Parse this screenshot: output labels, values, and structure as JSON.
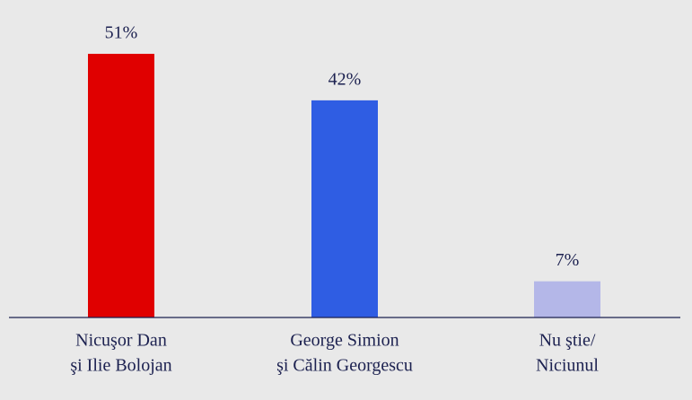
{
  "chart_data": {
    "type": "bar",
    "categories": [
      [
        "Nicuşor Dan",
        "şi Ilie Bolojan"
      ],
      [
        "George Simion",
        "şi Călin Georgescu"
      ],
      [
        "Nu ştie/",
        "Niciunul"
      ]
    ],
    "values": [
      51,
      42,
      7
    ],
    "value_labels": [
      "51%",
      "42%",
      "7%"
    ],
    "colors": [
      "#e00000",
      "#2f5de3",
      "#b4b7e8"
    ]
  }
}
